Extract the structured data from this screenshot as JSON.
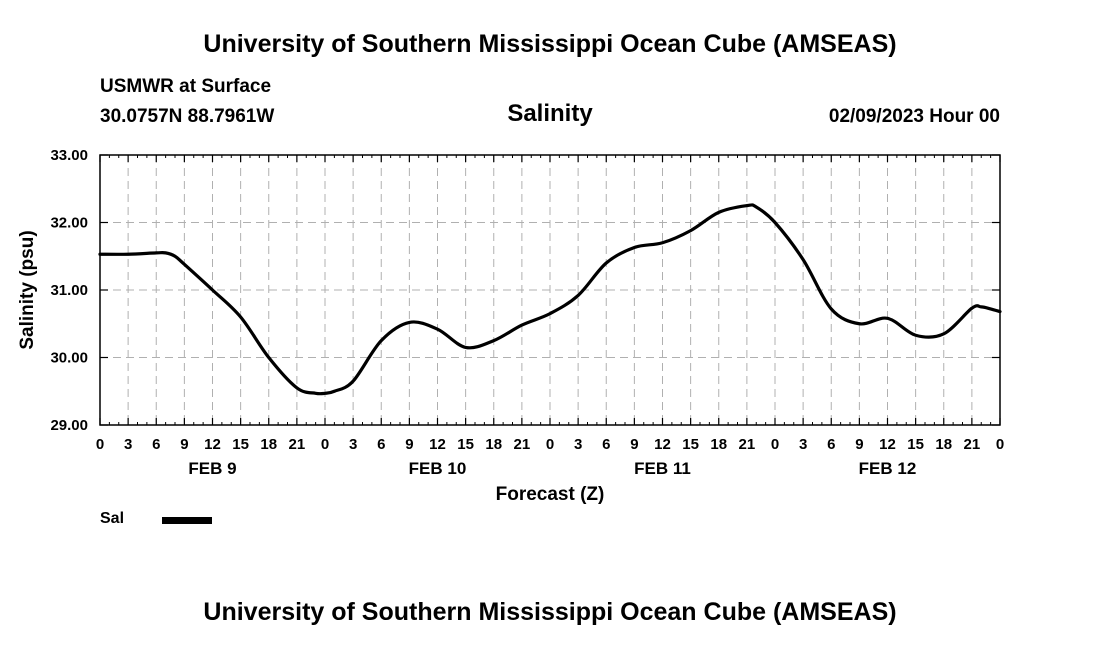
{
  "header": {
    "top_title": "University of Southern Mississippi Ocean Cube (AMSEAS)",
    "station": "USMWR at Surface",
    "coords": "30.0757N  88.7961W",
    "variable": "Salinity",
    "date": "02/09/2023 Hour 00"
  },
  "footer": {
    "bottom_title": "University of Southern Mississippi Ocean Cube (AMSEAS)"
  },
  "legend": {
    "label": "Sal",
    "color": "#000000"
  },
  "chart_data": {
    "type": "line",
    "title": "Salinity",
    "xlabel": "Forecast (Z)",
    "ylabel": "Salinity (psu)",
    "ylim": [
      29.0,
      33.0
    ],
    "yticks": [
      "29.00",
      "30.00",
      "31.00",
      "32.00",
      "33.00"
    ],
    "xlim": [
      0,
      96
    ],
    "xtick_labels": [
      "0",
      "3",
      "6",
      "9",
      "12",
      "15",
      "18",
      "21",
      "0",
      "3",
      "6",
      "9",
      "12",
      "15",
      "18",
      "21",
      "0",
      "3",
      "6",
      "9",
      "12",
      "15",
      "18",
      "21",
      "0",
      "3",
      "6",
      "9",
      "12",
      "15",
      "18",
      "21",
      "0"
    ],
    "day_labels": [
      {
        "label": "FEB 9",
        "at": 12
      },
      {
        "label": "FEB 10",
        "at": 36
      },
      {
        "label": "FEB 11",
        "at": 60
      },
      {
        "label": "FEB 12",
        "at": 84
      }
    ],
    "grid": true,
    "series": [
      {
        "name": "Sal",
        "x": [
          0,
          3,
          6,
          7,
          8,
          9,
          12,
          15,
          18,
          21,
          23,
          24,
          25,
          27,
          30,
          33,
          36,
          39,
          42,
          45,
          48,
          51,
          54,
          57,
          60,
          63,
          66,
          69,
          70,
          72,
          75,
          78,
          81,
          84,
          87,
          90,
          93,
          94,
          95,
          96
        ],
        "values": [
          31.53,
          31.53,
          31.55,
          31.55,
          31.5,
          31.38,
          31.0,
          30.6,
          30.0,
          29.55,
          29.47,
          29.47,
          29.5,
          29.65,
          30.25,
          30.52,
          30.42,
          30.15,
          30.25,
          30.48,
          30.65,
          30.92,
          31.4,
          31.63,
          31.7,
          31.88,
          32.15,
          32.25,
          32.23,
          32.0,
          31.45,
          30.72,
          30.5,
          30.58,
          30.33,
          30.35,
          30.73,
          30.75,
          30.72,
          30.68
        ]
      }
    ]
  }
}
